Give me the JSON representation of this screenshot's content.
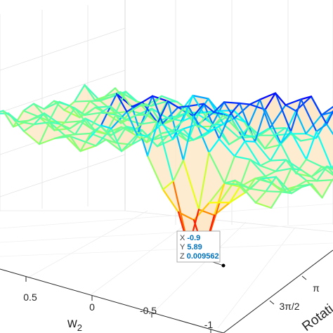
{
  "chart_data": {
    "type": "surface",
    "x_axis": {
      "label": "w",
      "label_subscript": "2",
      "ticks": [
        {
          "value": 0.5,
          "label": "0.5"
        },
        {
          "value": 0,
          "label": "0"
        },
        {
          "value": -0.5,
          "label": "-0.5"
        },
        {
          "value": -1,
          "label": "-1"
        }
      ]
    },
    "y_axis": {
      "label": "Rotati",
      "ticks": [
        {
          "value": 3.1416,
          "label": "π"
        },
        {
          "value": 4.7124,
          "label": "3π/2"
        }
      ]
    },
    "colormap": "jet",
    "face_color": "#fde9c8",
    "grid": true,
    "datatip": {
      "x_key": "X",
      "x_value": "-0.9",
      "y_key": "Y",
      "y_value": "5.89",
      "z_key": "Z",
      "z_value": "0.009562"
    }
  }
}
